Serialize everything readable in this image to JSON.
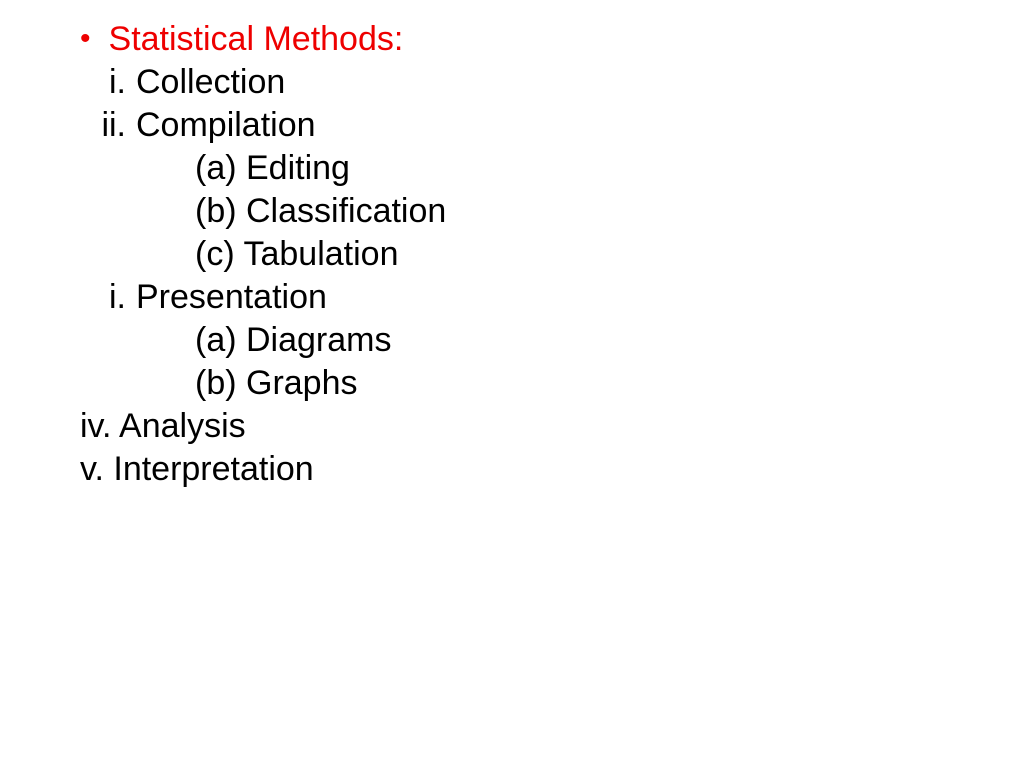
{
  "colors": {
    "heading": "#ee0000",
    "bullet": "#ee0000",
    "text": "#000000",
    "background": "#ffffff"
  },
  "typography": {
    "font_family": "Comic Sans MS",
    "font_size": 34
  },
  "heading": {
    "bullet": "•",
    "text": "Statistical Methods:"
  },
  "items": {
    "i1_marker": "i.",
    "i1_text": "Collection",
    "i2_marker": "ii.",
    "i2_text": "Compilation",
    "i2a": "(a) Editing",
    "i2b": "(b) Classification",
    "i2c": "(c) Tabulation",
    "i3_marker": "i.",
    "i3_text": "Presentation",
    "i3a": "(a) Diagrams",
    "i3b": "(b) Graphs",
    "i4": "iv. Analysis",
    "i5": "v. Interpretation"
  }
}
